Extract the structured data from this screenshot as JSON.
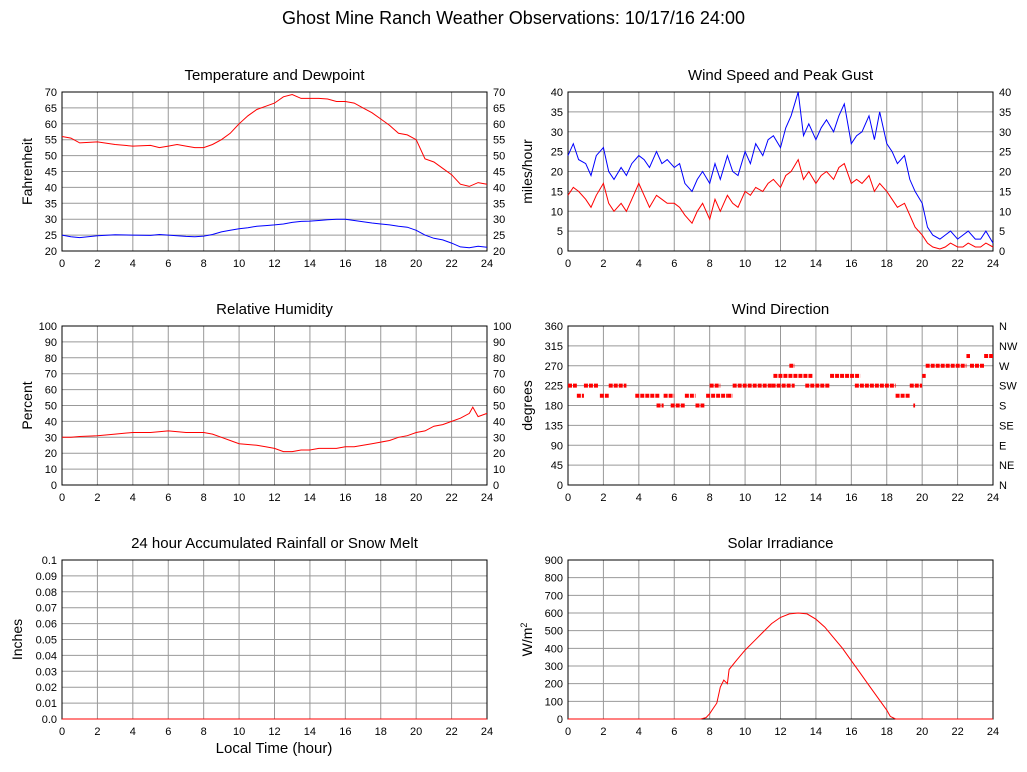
{
  "page_title": "Ghost Mine Ranch Weather Observations: 10/17/16 24:00",
  "shared_xlabel": "Local Time (hour)",
  "colors": {
    "red": "#ff0000",
    "blue": "#0000ff",
    "grid": "#999999"
  },
  "chart_data": [
    {
      "id": "temp",
      "type": "line",
      "title": "Temperature and Dewpoint",
      "ylabel": "Fahrenheit",
      "xlim": [
        0,
        24
      ],
      "ylim": [
        20,
        70
      ],
      "xticks": [
        0,
        2,
        4,
        6,
        8,
        10,
        12,
        14,
        16,
        18,
        20,
        22,
        24
      ],
      "yticks": [
        20,
        25,
        30,
        35,
        40,
        45,
        50,
        55,
        60,
        65,
        70
      ],
      "right_ticks": [
        "20",
        "25",
        "30",
        "35",
        "40",
        "45",
        "50",
        "55",
        "60",
        "65",
        "70"
      ],
      "grid": true,
      "series": [
        {
          "color": "#ff0000",
          "x": [
            0,
            0.5,
            1,
            2,
            3,
            4,
            5,
            5.5,
            6,
            6.5,
            7,
            7.5,
            8,
            8.5,
            9,
            9.5,
            10,
            10.5,
            11,
            11.5,
            12,
            12.5,
            13,
            13.5,
            14,
            14.5,
            15,
            15.5,
            16,
            16.5,
            17,
            17.5,
            18,
            18.5,
            19,
            19.5,
            20,
            20.5,
            21,
            21.5,
            22,
            22.5,
            23,
            23.5,
            24
          ],
          "y": [
            56,
            55.5,
            54,
            54.3,
            53.5,
            53,
            53.2,
            52.5,
            53,
            53.5,
            53,
            52.5,
            52.5,
            53.5,
            55,
            57,
            60,
            62.5,
            64.5,
            65.5,
            66.5,
            68.5,
            69.2,
            68,
            68,
            68,
            67.8,
            67,
            67,
            66.5,
            65,
            63.5,
            61.5,
            59.5,
            57,
            56.5,
            55,
            49,
            48,
            46,
            44,
            41,
            40.3,
            41.5,
            41
          ]
        },
        {
          "color": "#0000ff",
          "x": [
            0,
            0.5,
            1,
            2,
            3,
            4,
            5,
            5.5,
            6,
            6.5,
            7,
            7.5,
            8,
            8.5,
            9,
            9.5,
            10,
            10.5,
            11,
            11.5,
            12,
            12.5,
            13,
            13.5,
            14,
            14.5,
            15,
            15.5,
            16,
            16.5,
            17,
            17.5,
            18,
            18.5,
            19,
            19.5,
            20,
            20.5,
            21,
            21.5,
            22,
            22.5,
            23,
            23.5,
            24
          ],
          "y": [
            25,
            24.5,
            24.2,
            24.8,
            25.1,
            25,
            24.9,
            25.2,
            25,
            24.8,
            24.6,
            24.5,
            24.7,
            25.2,
            26,
            26.5,
            27,
            27.3,
            27.8,
            28,
            28.2,
            28.5,
            29,
            29.3,
            29.4,
            29.6,
            29.8,
            30,
            30,
            29.6,
            29.2,
            28.8,
            28.5,
            28.2,
            27.8,
            27.5,
            26.5,
            25,
            24,
            23.5,
            22.5,
            21.3,
            21,
            21.5,
            21.2
          ]
        }
      ]
    },
    {
      "id": "wind",
      "type": "line",
      "title": "Wind Speed and Peak Gust",
      "ylabel": "miles/hour",
      "xlim": [
        0,
        24
      ],
      "ylim": [
        0,
        40
      ],
      "xticks": [
        0,
        2,
        4,
        6,
        8,
        10,
        12,
        14,
        16,
        18,
        20,
        22,
        24
      ],
      "yticks": [
        0,
        5,
        10,
        15,
        20,
        25,
        30,
        35,
        40
      ],
      "right_ticks": [
        "0",
        "5",
        "10",
        "15",
        "20",
        "25",
        "30",
        "35",
        "40"
      ],
      "grid": true,
      "series": [
        {
          "color": "#0000ff",
          "x": [
            0,
            0.3,
            0.6,
            1,
            1.3,
            1.6,
            2,
            2.3,
            2.6,
            3,
            3.3,
            3.6,
            4,
            4.3,
            4.6,
            5,
            5.3,
            5.6,
            6,
            6.3,
            6.6,
            7,
            7.3,
            7.6,
            8,
            8.3,
            8.6,
            9,
            9.3,
            9.6,
            10,
            10.3,
            10.6,
            11,
            11.3,
            11.6,
            12,
            12.3,
            12.6,
            13,
            13.3,
            13.6,
            14,
            14.3,
            14.6,
            15,
            15.3,
            15.6,
            16,
            16.3,
            16.6,
            17,
            17.3,
            17.6,
            18,
            18.3,
            18.6,
            19,
            19.3,
            19.6,
            20,
            20.3,
            20.6,
            21,
            21.3,
            21.6,
            22,
            22.3,
            22.6,
            23,
            23.3,
            23.6,
            24
          ],
          "y": [
            24,
            27,
            23,
            22,
            19,
            24,
            26,
            20,
            18,
            21,
            19,
            22,
            24,
            23,
            21,
            25,
            22,
            23,
            21,
            22,
            17,
            15,
            18,
            20,
            17,
            22,
            18,
            24,
            20,
            19,
            25,
            22,
            27,
            24,
            28,
            29,
            26,
            31,
            34,
            40,
            29,
            32,
            28,
            31,
            33,
            30,
            34,
            37,
            27,
            29,
            30,
            34,
            28,
            35,
            27,
            25,
            22,
            24,
            18,
            15,
            12,
            6,
            4,
            3,
            4,
            5,
            3,
            4,
            5,
            3,
            3,
            5,
            2
          ]
        },
        {
          "color": "#ff0000",
          "x": [
            0,
            0.3,
            0.6,
            1,
            1.3,
            1.6,
            2,
            2.3,
            2.6,
            3,
            3.3,
            3.6,
            4,
            4.3,
            4.6,
            5,
            5.3,
            5.6,
            6,
            6.3,
            6.6,
            7,
            7.3,
            7.6,
            8,
            8.3,
            8.6,
            9,
            9.3,
            9.6,
            10,
            10.3,
            10.6,
            11,
            11.3,
            11.6,
            12,
            12.3,
            12.6,
            13,
            13.3,
            13.6,
            14,
            14.3,
            14.6,
            15,
            15.3,
            15.6,
            16,
            16.3,
            16.6,
            17,
            17.3,
            17.6,
            18,
            18.3,
            18.6,
            19,
            19.3,
            19.6,
            20,
            20.3,
            20.6,
            21,
            21.3,
            21.6,
            22,
            22.3,
            22.6,
            23,
            23.3,
            23.6,
            24
          ],
          "y": [
            14,
            16,
            15,
            13,
            11,
            14,
            17,
            12,
            10,
            12,
            10,
            13,
            17,
            14,
            11,
            14,
            13,
            12,
            12,
            11,
            9,
            7,
            10,
            12,
            8,
            13,
            10,
            14,
            12,
            11,
            15,
            14,
            16,
            15,
            17,
            18,
            16,
            19,
            20,
            23,
            18,
            20,
            17,
            19,
            20,
            18,
            21,
            22,
            17,
            18,
            17,
            19,
            15,
            17,
            15,
            13,
            11,
            12,
            9,
            6,
            4,
            2,
            1,
            0.5,
            1,
            2,
            1,
            1,
            2,
            1,
            1,
            2,
            1
          ]
        }
      ]
    },
    {
      "id": "rh",
      "type": "line",
      "title": "Relative Humidity",
      "ylabel": "Percent",
      "xlim": [
        0,
        24
      ],
      "ylim": [
        0,
        100
      ],
      "xticks": [
        0,
        2,
        4,
        6,
        8,
        10,
        12,
        14,
        16,
        18,
        20,
        22,
        24
      ],
      "yticks": [
        0,
        10,
        20,
        30,
        40,
        50,
        60,
        70,
        80,
        90,
        100
      ],
      "right_ticks": [
        "0",
        "10",
        "20",
        "30",
        "40",
        "50",
        "60",
        "70",
        "80",
        "90",
        "100"
      ],
      "grid": true,
      "series": [
        {
          "color": "#ff0000",
          "x": [
            0,
            0.5,
            1,
            2,
            3,
            4,
            5,
            6,
            7,
            8,
            8.5,
            9,
            9.5,
            10,
            10.5,
            11,
            11.5,
            12,
            12.5,
            13,
            13.5,
            14,
            14.5,
            15,
            15.5,
            16,
            16.5,
            17,
            17.5,
            18,
            18.5,
            19,
            19.5,
            20,
            20.5,
            21,
            21.5,
            22,
            22.5,
            23,
            23.2,
            23.5,
            24
          ],
          "y": [
            30,
            30,
            30.5,
            31,
            32,
            33,
            33,
            34,
            33,
            33,
            32,
            30,
            28,
            26,
            25.5,
            25,
            24,
            23,
            21,
            21,
            22,
            22,
            23,
            23,
            23,
            24,
            24,
            25,
            26,
            27,
            28,
            30,
            31,
            33,
            34,
            37,
            38,
            40,
            42,
            45,
            49,
            43,
            45
          ]
        }
      ]
    },
    {
      "id": "winddir",
      "type": "scatter",
      "title": "Wind Direction",
      "ylabel": "degrees",
      "xlim": [
        0,
        24
      ],
      "ylim": [
        0,
        360
      ],
      "xticks": [
        0,
        2,
        4,
        6,
        8,
        10,
        12,
        14,
        16,
        18,
        20,
        22,
        24
      ],
      "yticks": [
        0,
        45,
        90,
        135,
        180,
        225,
        270,
        315,
        360
      ],
      "right_ticks": [
        "N",
        "NE",
        "E",
        "SE",
        "S",
        "SW",
        "W",
        "NW",
        "N"
      ],
      "grid": true,
      "series": [
        {
          "color": "#ff0000",
          "segments": [
            [
              0,
              0.5,
              225
            ],
            [
              0.5,
              0.9,
              202
            ],
            [
              0.9,
              1.7,
              225
            ],
            [
              1.8,
              2.3,
              202
            ],
            [
              2.3,
              3.3,
              225
            ],
            [
              3.8,
              5.2,
              202
            ],
            [
              5,
              5.4,
              180
            ],
            [
              5.4,
              6.0,
              202
            ],
            [
              5.8,
              6.6,
              180
            ],
            [
              6.6,
              7.2,
              202
            ],
            [
              7.2,
              7.7,
              180
            ],
            [
              7.8,
              9.0,
              202
            ],
            [
              8.0,
              8.6,
              225
            ],
            [
              9.3,
              11.5,
              225
            ],
            [
              9.0,
              9.3,
              202
            ],
            [
              11.5,
              12.8,
              225
            ],
            [
              11.6,
              13.8,
              247
            ],
            [
              12.5,
              12.8,
              270
            ],
            [
              13.4,
              14.8,
              225
            ],
            [
              14.8,
              16.5,
              247
            ],
            [
              16.2,
              18.5,
              225
            ],
            [
              18.5,
              19.3,
              202
            ],
            [
              19.3,
              20.0,
              225
            ],
            [
              19.5,
              19.6,
              180
            ],
            [
              20,
              20.2,
              247
            ],
            [
              20.2,
              22.5,
              270
            ],
            [
              22.5,
              22.7,
              292
            ],
            [
              22.7,
              23.5,
              270
            ],
            [
              23.5,
              24,
              292
            ]
          ]
        }
      ]
    },
    {
      "id": "rain",
      "type": "line",
      "title": "24 hour Accumulated Rainfall or Snow Melt",
      "ylabel": "Inches",
      "xlim": [
        0,
        24
      ],
      "ylim": [
        0,
        0.1
      ],
      "xticks": [
        0,
        2,
        4,
        6,
        8,
        10,
        12,
        14,
        16,
        18,
        20,
        22,
        24
      ],
      "yticks": [
        0,
        0.01,
        0.02,
        0.03,
        0.04,
        0.05,
        0.06,
        0.07,
        0.08,
        0.09,
        0.1
      ],
      "ytick_labels": [
        "0.0",
        "0.01",
        "0.02",
        "0.03",
        "0.04",
        "0.05",
        "0.06",
        "0.07",
        "0.08",
        "0.09",
        "0.1"
      ],
      "grid": true,
      "series": [
        {
          "color": "#ff0000",
          "x": [
            0,
            24
          ],
          "y": [
            0,
            0
          ]
        }
      ]
    },
    {
      "id": "solar",
      "type": "line",
      "title": "Solar Irradiance",
      "ylabel": "W/m",
      "ylabel_sup": "2",
      "xlim": [
        0,
        24
      ],
      "ylim": [
        0,
        900
      ],
      "xticks": [
        0,
        2,
        4,
        6,
        8,
        10,
        12,
        14,
        16,
        18,
        20,
        22,
        24
      ],
      "yticks": [
        0,
        100,
        200,
        300,
        400,
        500,
        600,
        700,
        800,
        900
      ],
      "grid": true,
      "series": [
        {
          "color": "#ff0000",
          "x": [
            0,
            7.5,
            7.8,
            8,
            8.2,
            8.4,
            8.6,
            8.8,
            9.0,
            9.1,
            9.5,
            10,
            10.5,
            11,
            11.5,
            12,
            12.5,
            13,
            13.5,
            14,
            14.5,
            15,
            15.5,
            16,
            16.5,
            17,
            17.5,
            18,
            18.2,
            18.5,
            24
          ],
          "y": [
            0,
            0,
            8,
            30,
            60,
            90,
            180,
            220,
            200,
            280,
            330,
            390,
            440,
            490,
            540,
            575,
            595,
            600,
            595,
            565,
            520,
            460,
            400,
            330,
            260,
            190,
            120,
            50,
            15,
            0,
            0
          ]
        }
      ]
    }
  ]
}
